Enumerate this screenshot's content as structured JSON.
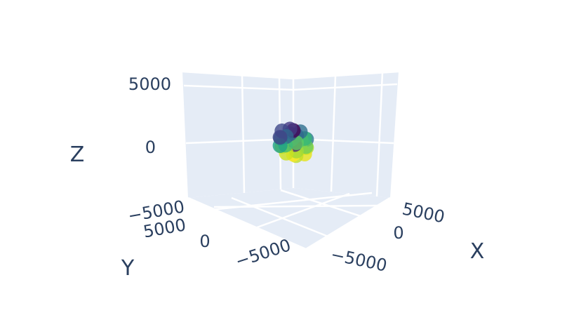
{
  "chart_data": {
    "type": "scatter3d",
    "title": "",
    "axes": {
      "x": {
        "title": "X",
        "ticks": [
          "5000",
          "0",
          "−5000"
        ],
        "range": [
          -8000,
          8000
        ]
      },
      "y": {
        "title": "Y",
        "ticks": [
          "5000",
          "0",
          "−5000"
        ],
        "range": [
          -8000,
          8000
        ]
      },
      "z": {
        "title": "Z",
        "ticks": [
          "5000",
          "0",
          "−5000"
        ],
        "range": [
          -8000,
          8000
        ]
      }
    },
    "grid": true,
    "colorscale": "viridis",
    "marker_opacity": 0.8,
    "points": [
      {
        "x": 0,
        "y": 0,
        "z": 1000,
        "color": "#440154"
      },
      {
        "x": -300,
        "y": -450,
        "z": 900,
        "color": "#443983"
      },
      {
        "x": 400,
        "y": 500,
        "z": 850,
        "color": "#31688e"
      },
      {
        "x": 900,
        "y": 0,
        "z": 700,
        "color": "#31688e"
      },
      {
        "x": -900,
        "y": 0,
        "z": 700,
        "color": "#2e6f8e"
      },
      {
        "x": 0,
        "y": 900,
        "z": 650,
        "color": "#35b779"
      },
      {
        "x": 0,
        "y": -900,
        "z": 650,
        "color": "#3e4989"
      },
      {
        "x": 650,
        "y": 650,
        "z": 350,
        "color": "#5ec962"
      },
      {
        "x": -650,
        "y": 650,
        "z": 350,
        "color": "#2a788e"
      },
      {
        "x": 650,
        "y": -650,
        "z": 350,
        "color": "#414487"
      },
      {
        "x": -650,
        "y": -650,
        "z": 350,
        "color": "#355f8d"
      },
      {
        "x": 1000,
        "y": 0,
        "z": 0,
        "color": "#3dbc74"
      },
      {
        "x": -1000,
        "y": 0,
        "z": 0,
        "color": "#7ad151"
      },
      {
        "x": 0,
        "y": 1000,
        "z": 0,
        "color": "#6ccd5a"
      },
      {
        "x": 0,
        "y": -1000,
        "z": 0,
        "color": "#23898e"
      },
      {
        "x": 300,
        "y": 300,
        "z": 0,
        "color": "#482878"
      },
      {
        "x": -300,
        "y": -300,
        "z": 100,
        "color": "#26828e"
      },
      {
        "x": 650,
        "y": 650,
        "z": -350,
        "color": "#a0da39"
      },
      {
        "x": -650,
        "y": 650,
        "z": -350,
        "color": "#b5de2b"
      },
      {
        "x": 650,
        "y": -650,
        "z": -350,
        "color": "#1fa187"
      },
      {
        "x": -650,
        "y": -650,
        "z": -350,
        "color": "#4ac16d"
      },
      {
        "x": 900,
        "y": 0,
        "z": -700,
        "color": "#cae11f"
      },
      {
        "x": -900,
        "y": 0,
        "z": -700,
        "color": "#d8e219"
      },
      {
        "x": 0,
        "y": 900,
        "z": -650,
        "color": "#e5e419"
      },
      {
        "x": 0,
        "y": -900,
        "z": -650,
        "color": "#bddf26"
      },
      {
        "x": 0,
        "y": 0,
        "z": -1000,
        "color": "#fde725"
      },
      {
        "x": 300,
        "y": 400,
        "z": -900,
        "color": "#c2df23"
      }
    ]
  }
}
